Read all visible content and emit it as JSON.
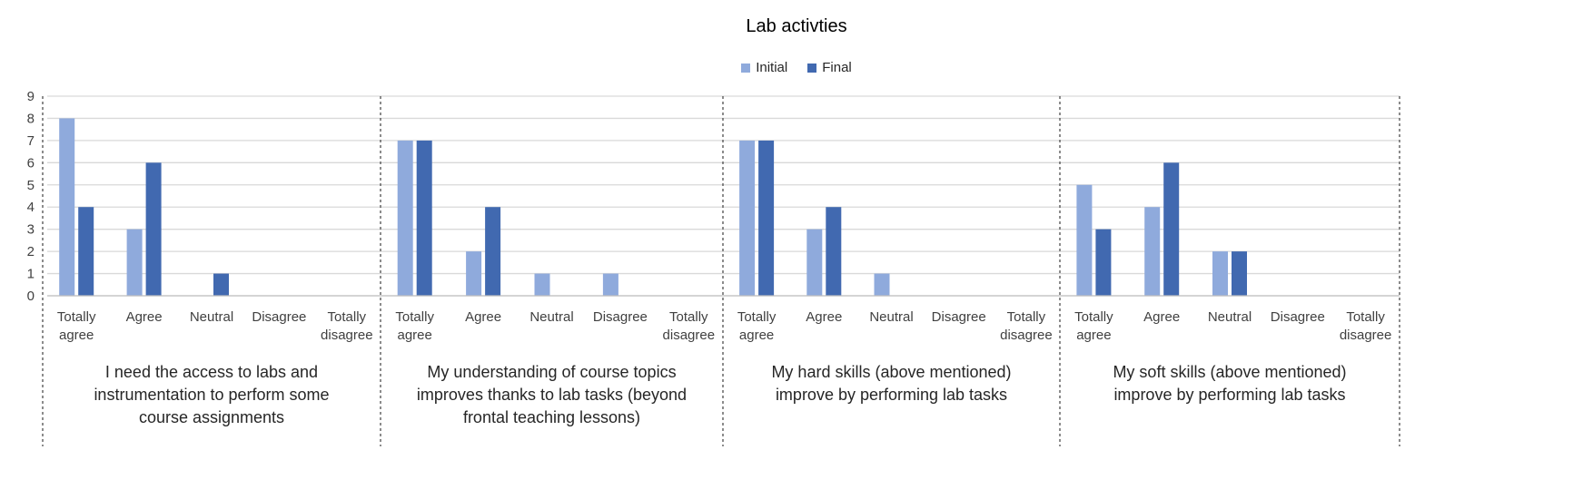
{
  "chart_data": {
    "type": "bar",
    "title": "Lab activties",
    "legend_position": "top",
    "grid": true,
    "ylim": [
      0,
      9
    ],
    "yticks": [
      0,
      1,
      2,
      3,
      4,
      5,
      6,
      7,
      8,
      9
    ],
    "categories": [
      "Totally agree",
      "Agree",
      "Neutral",
      "Disagree",
      "Totally disagree"
    ],
    "groups": [
      {
        "label": "I need the access to labs and instrumentation to perform some course assignments",
        "label_lines": [
          "I need the access to labs and",
          "instrumentation to perform some",
          "course assignments"
        ],
        "series": [
          {
            "name": "Initial",
            "values": [
              8,
              3,
              0,
              0,
              0
            ]
          },
          {
            "name": "Final",
            "values": [
              4,
              6,
              1,
              0,
              0
            ]
          }
        ]
      },
      {
        "label": "My understanding of course topics improves thanks to lab tasks (beyond frontal teaching lessons)",
        "label_lines": [
          "My understanding of course topics",
          "improves thanks to lab tasks (beyond",
          "frontal teaching lessons)"
        ],
        "series": [
          {
            "name": "Initial",
            "values": [
              7,
              2,
              1,
              1,
              0
            ]
          },
          {
            "name": "Final",
            "values": [
              7,
              4,
              0,
              0,
              0
            ]
          }
        ]
      },
      {
        "label": "My hard skills (above mentioned) improve by performing lab tasks",
        "label_lines": [
          "My hard skills (above mentioned)",
          "improve by performing lab tasks"
        ],
        "series": [
          {
            "name": "Initial",
            "values": [
              7,
              3,
              1,
              0,
              0
            ]
          },
          {
            "name": "Final",
            "values": [
              7,
              4,
              0,
              0,
              0
            ]
          }
        ]
      },
      {
        "label": "My soft skills (above mentioned) improve by performing lab tasks",
        "label_lines": [
          "My soft skills (above mentioned)",
          "improve by performing lab tasks"
        ],
        "series": [
          {
            "name": "Initial",
            "values": [
              5,
              4,
              2,
              0,
              0
            ]
          },
          {
            "name": "Final",
            "values": [
              3,
              6,
              2,
              0,
              0
            ]
          }
        ]
      }
    ],
    "series_names": [
      "Initial",
      "Final"
    ],
    "colors": {
      "Initial": "#8faadc",
      "Final": "#4169b0"
    }
  }
}
